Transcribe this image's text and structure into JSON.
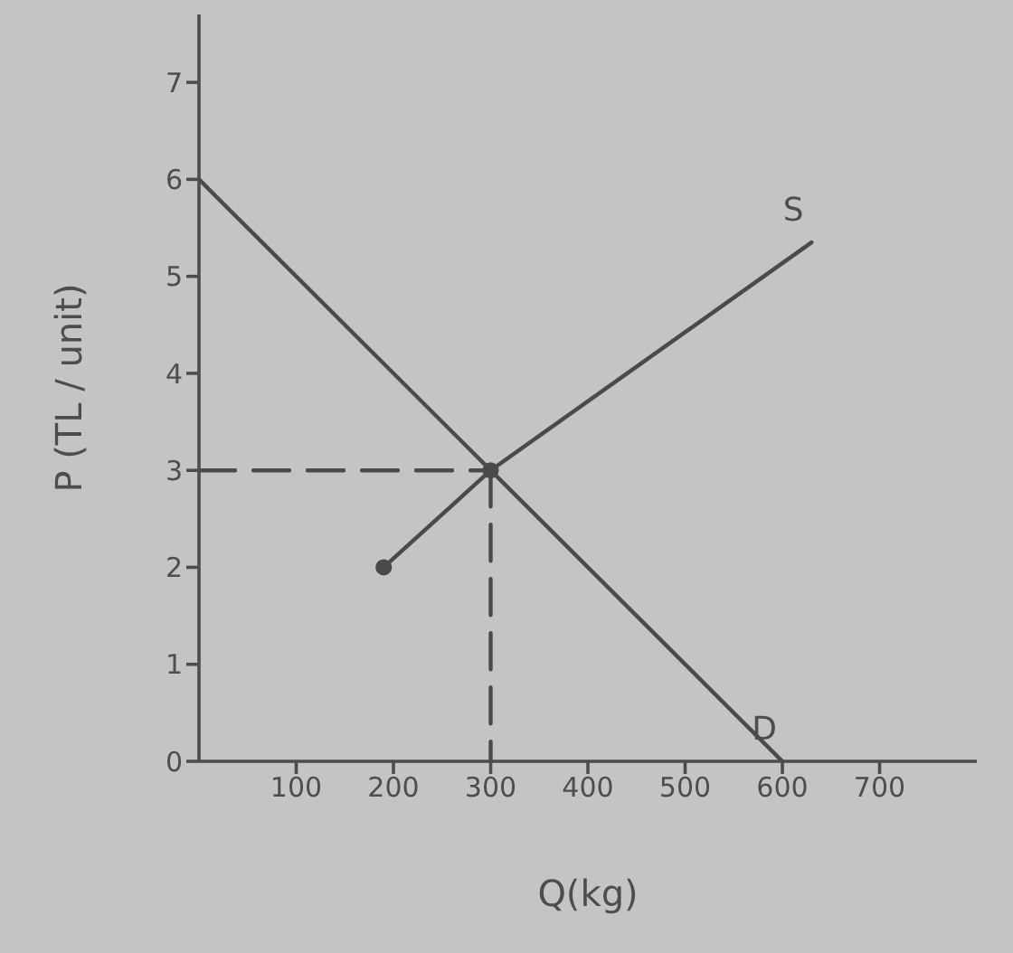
{
  "chart_data": {
    "type": "line",
    "xlabel": "Q(kg)",
    "ylabel": "P (TL / unit)",
    "xlim": [
      0,
      800
    ],
    "ylim": [
      0,
      7.7
    ],
    "xticks": [
      100,
      200,
      300,
      400,
      500,
      600,
      700
    ],
    "yticks": [
      0,
      1,
      2,
      3,
      4,
      5,
      6,
      7
    ],
    "grid": false,
    "legend": false,
    "series": [
      {
        "name": "D",
        "color": "#4a4a4a",
        "x": [
          0,
          600
        ],
        "values": [
          6,
          0
        ]
      },
      {
        "name": "S",
        "color": "#4a4a4a",
        "x": [
          190,
          300,
          630
        ],
        "values": [
          2,
          3,
          5.35
        ]
      },
      {
        "type": "scatter",
        "marker": "circle",
        "color": "#4a4a4a",
        "x": [
          190,
          300
        ],
        "values": [
          2,
          3
        ]
      },
      {
        "color": "#4a4a4a",
        "x": [
          0,
          300
        ],
        "values": [
          3,
          3
        ],
        "line_style": "dashed"
      },
      {
        "color": "#4a4a4a",
        "x": [
          300,
          300
        ],
        "values": [
          3,
          0
        ],
        "line_style": "dashed"
      }
    ]
  }
}
